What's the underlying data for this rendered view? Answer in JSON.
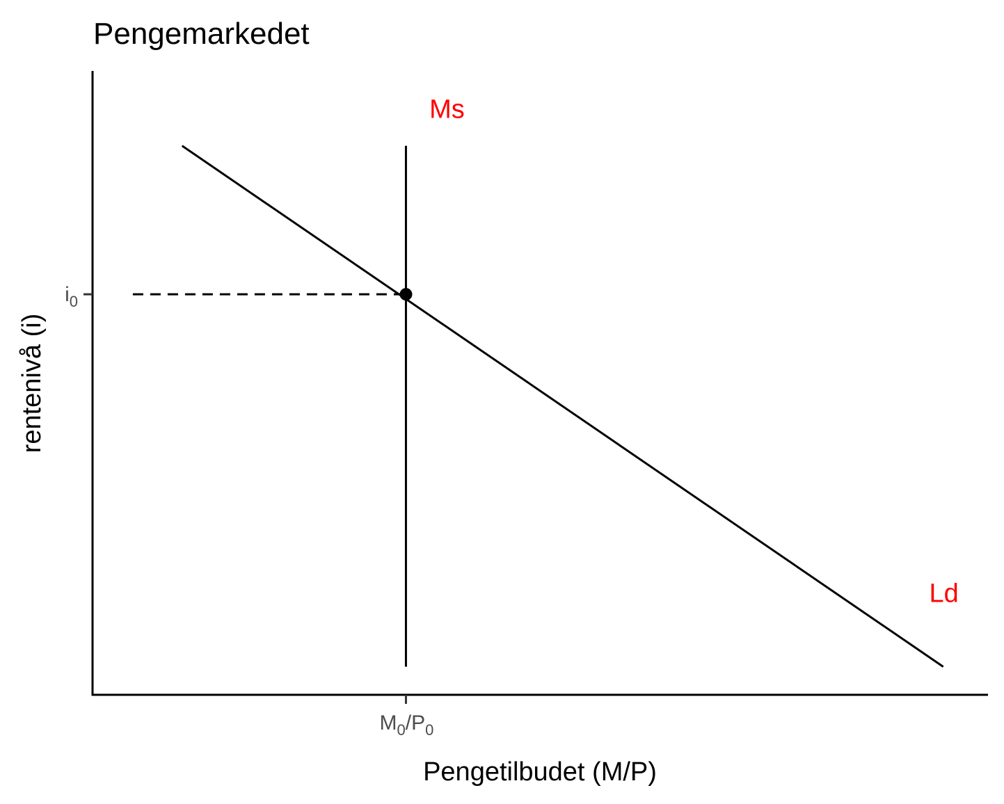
{
  "chart_data": {
    "type": "line",
    "title": "Pengemarkedet",
    "xlabel": "Pengetilbudet (M/P)",
    "ylabel": "rentenivå (i)",
    "xlim": [
      0,
      10
    ],
    "ylim": [
      0,
      10
    ],
    "grid": false,
    "legend": "none",
    "series": [
      {
        "name": "Ld",
        "color": "#000000",
        "label_color": "#ff0000",
        "x": [
          1,
          9.5
        ],
        "y": [
          8.8,
          0.45
        ]
      },
      {
        "name": "Ms",
        "color": "#000000",
        "label_color": "#ff0000",
        "x": [
          3.5,
          3.5
        ],
        "y": [
          8.8,
          0.45
        ]
      }
    ],
    "guide": {
      "style": "dashed",
      "x": [
        0.45,
        3.5
      ],
      "y": [
        6.42,
        6.42
      ]
    },
    "equilibrium": {
      "x": 3.5,
      "y": 6.42
    },
    "x_ticks": [
      {
        "value": 3.5,
        "base": "M",
        "sub": "0",
        "sep": "/",
        "base2": "P",
        "sub2": "0"
      }
    ],
    "y_ticks": [
      {
        "value": 6.42,
        "base": "i",
        "sub": "0"
      }
    ]
  }
}
